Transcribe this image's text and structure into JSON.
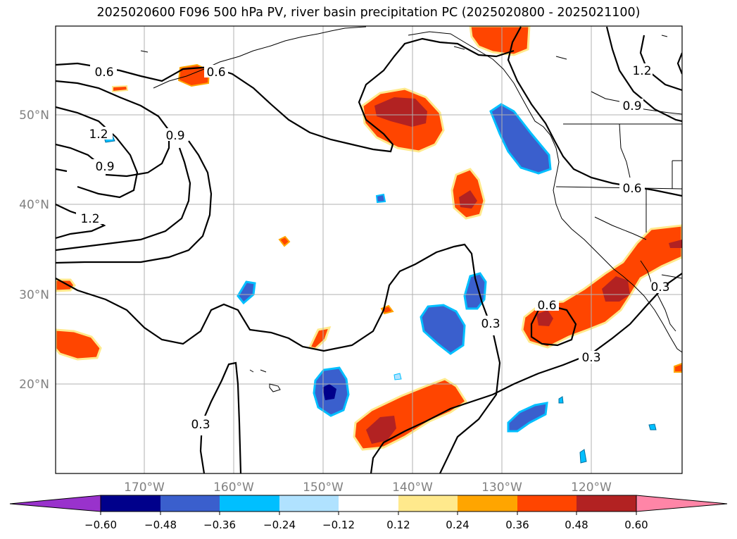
{
  "title": "2025020600 F096 500 hPa PV, river basin precipitation PC (2025020800 - 2025021100)",
  "lat_labels": [
    "50°N",
    "40°N",
    "30°N",
    "20°N"
  ],
  "lon_labels": [
    "170°W",
    "160°W",
    "150°W",
    "140°W",
    "130°W",
    "120°W"
  ],
  "pv_contour_labels": [
    "0.6",
    "0.6",
    "1.2",
    "0.9",
    "0.9",
    "1.2",
    "1.2",
    "0.9",
    "0.6",
    "0.6",
    "0.3",
    "0.3",
    "0.3",
    "0.3"
  ],
  "colorbar": {
    "ticks": [
      "−0.60",
      "−0.48",
      "−0.36",
      "−0.24",
      "−0.12",
      "0.12",
      "0.24",
      "0.36",
      "0.48",
      "0.60"
    ],
    "colors": [
      "#9932cc",
      "#00008b",
      "#3a5fcd",
      "#00bfff",
      "#b0e2ff",
      "#ffffff",
      "#ffe98c",
      "#ffa500",
      "#ff4500",
      "#b22222",
      "#ff85a7"
    ]
  },
  "colors": {
    "positive_high": "#b22222",
    "positive": "#ff4500",
    "positive_low": "#ffa500",
    "positive_edge": "#ffe98c",
    "negative_low": "#00bfff",
    "negative": "#3a5fcd",
    "negative_high": "#00008b",
    "grid": "#b0b0b0",
    "axis_label": "#808080"
  }
}
